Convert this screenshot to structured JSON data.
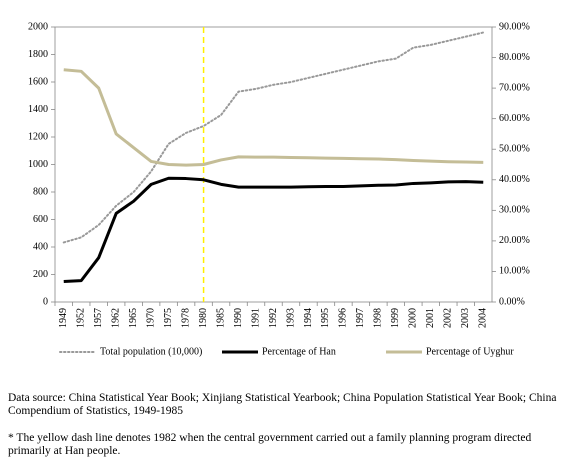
{
  "chart_data": {
    "type": "line",
    "categories": [
      "1949",
      "1952",
      "1957",
      "1962",
      "1965",
      "1970",
      "1975",
      "1978",
      "1980",
      "1985",
      "1990",
      "1991",
      "1992",
      "1993",
      "1994",
      "1995",
      "1996",
      "1997",
      "1998",
      "1999",
      "2000",
      "2001",
      "2002",
      "2003",
      "2004"
    ],
    "series": [
      {
        "name": "Total population (10,000)",
        "color": "#999999",
        "style": "dotted",
        "values": [
          433,
          470,
          560,
          700,
          800,
          950,
          1150,
          1230,
          1280,
          1360,
          1530,
          1550,
          1580,
          1600,
          1630,
          1660,
          1690,
          1720,
          1750,
          1770,
          1850,
          1870,
          1900,
          1930,
          1960
        ]
      },
      {
        "name": "Percentage of Han",
        "color": "#000000",
        "style": "solid",
        "axis": "y2",
        "values": [
          6.7,
          7,
          14.5,
          29,
          33,
          38.5,
          40.5,
          40.4,
          40,
          38.5,
          37.6,
          37.6,
          37.6,
          37.6,
          37.7,
          37.8,
          37.8,
          38,
          38.2,
          38.3,
          38.8,
          39,
          39.3,
          39.4,
          39.2
        ]
      },
      {
        "name": "Percentage of Uyghur",
        "color": "#c4bd97",
        "style": "solid",
        "axis": "y2",
        "values": [
          76,
          75.5,
          70,
          55,
          50.5,
          46,
          45,
          44.8,
          45,
          46.5,
          47.5,
          47.4,
          47.4,
          47.3,
          47.2,
          47.1,
          47,
          46.9,
          46.8,
          46.6,
          46.3,
          46.1,
          45.9,
          45.8,
          45.7
        ]
      }
    ],
    "ylim": [
      0,
      2000
    ],
    "yticks": [
      0,
      200,
      400,
      600,
      800,
      1000,
      1200,
      1400,
      1600,
      1800,
      2000
    ],
    "y2lim": [
      0,
      90
    ],
    "y2ticks": [
      {
        "value": 0,
        "label": "0.00%"
      },
      {
        "value": 10,
        "label": "10.00%"
      },
      {
        "value": 20,
        "label": "20.00%"
      },
      {
        "value": 30,
        "label": "30.00%"
      },
      {
        "value": 40,
        "label": "40.00%"
      },
      {
        "value": 50,
        "label": "50.00%"
      },
      {
        "value": 60,
        "label": "60.00%"
      },
      {
        "value": 70,
        "label": "70.00%"
      },
      {
        "value": 80,
        "label": "80.00%"
      },
      {
        "value": 90,
        "label": "90.00%"
      }
    ],
    "reference_line": {
      "category": "1980",
      "color": "#ffee00"
    },
    "legend": "bottom",
    "grid": false
  },
  "notes": {
    "source": "Data source:  China Statistical Year Book; Xinjiang Statistical Yearbook; China Population Statistical Year Book; China Compendium of Statistics, 1949-1985",
    "footnote": "* The yellow dash line denotes 1982 when the central government carried out a family planning program directed primarily at  Han people."
  }
}
